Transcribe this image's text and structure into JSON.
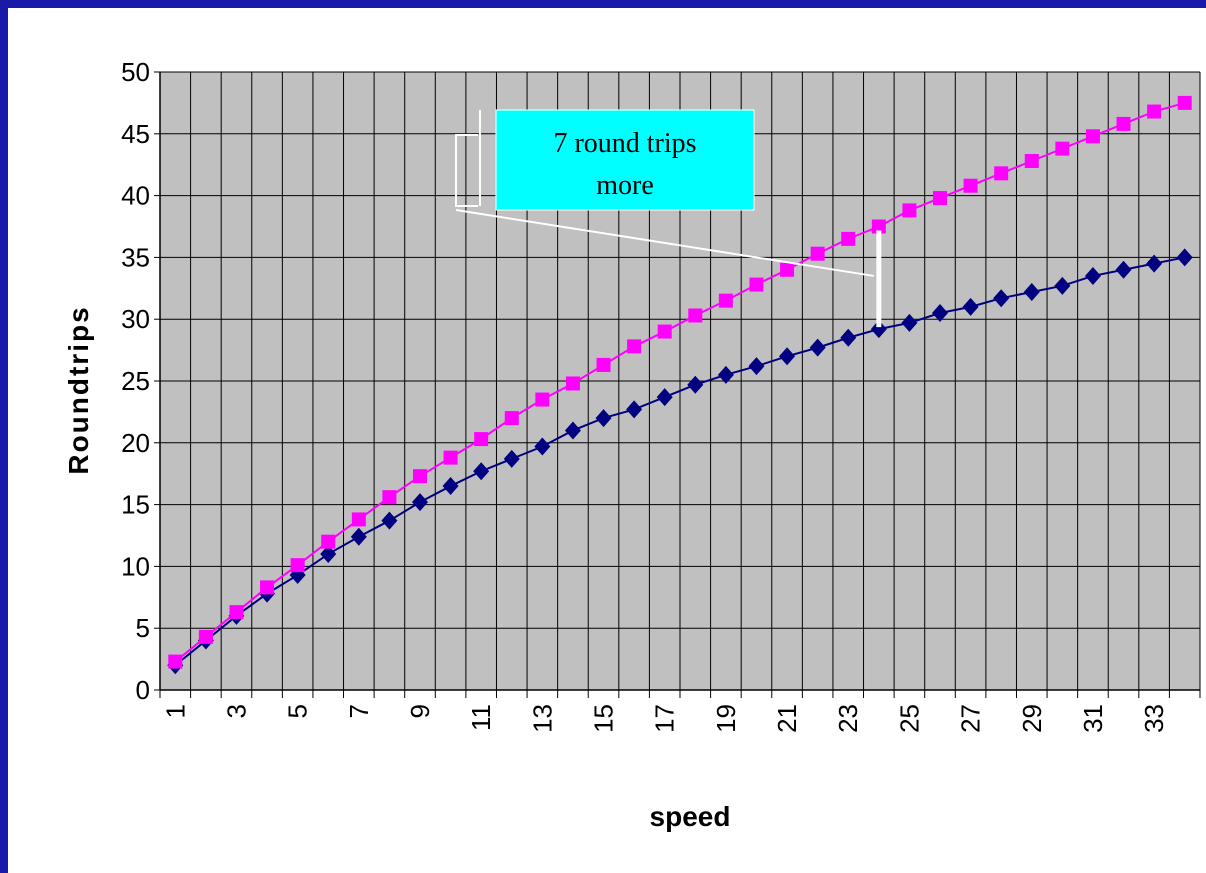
{
  "chart_data": {
    "type": "line",
    "xlabel": "speed",
    "ylabel": "Roundtrips",
    "ylim": [
      0,
      50
    ],
    "yticks": [
      0,
      5,
      10,
      15,
      20,
      25,
      30,
      35,
      40,
      45,
      50
    ],
    "x": [
      1,
      2,
      3,
      4,
      5,
      6,
      7,
      8,
      9,
      10,
      11,
      12,
      13,
      14,
      15,
      16,
      17,
      18,
      19,
      20,
      21,
      22,
      23,
      24,
      25,
      26,
      27,
      28,
      29,
      30,
      31,
      32,
      33,
      34
    ],
    "xtick_labels": [
      "1",
      "3",
      "5",
      "7",
      "9",
      "11",
      "13",
      "15",
      "17",
      "19",
      "21",
      "23",
      "25",
      "27",
      "29",
      "31",
      "33"
    ],
    "grid": true,
    "legend": "none",
    "plot_background": "#c0c0c0",
    "series": [
      {
        "color": "#000080",
        "marker": "diamond",
        "values": [
          2.0,
          4.0,
          6.0,
          7.8,
          9.3,
          11.0,
          12.4,
          13.7,
          15.2,
          16.5,
          17.7,
          18.7,
          19.7,
          21.0,
          22.0,
          22.7,
          23.7,
          24.7,
          25.5,
          26.2,
          27.0,
          27.7,
          28.5,
          29.2,
          29.7,
          30.5,
          31.0,
          31.7,
          32.2,
          32.7,
          33.5,
          34.0,
          34.5,
          35.0
        ]
      },
      {
        "color": "#ff00ff",
        "marker": "square",
        "values": [
          2.3,
          4.3,
          6.3,
          8.3,
          10.1,
          12.0,
          13.8,
          15.6,
          17.3,
          18.8,
          20.3,
          22.0,
          23.5,
          24.8,
          26.3,
          27.8,
          29.0,
          30.3,
          31.5,
          32.8,
          34.0,
          35.3,
          36.5,
          37.5,
          38.8,
          39.8,
          40.8,
          41.8,
          42.8,
          43.8,
          44.8,
          45.8,
          46.8,
          47.5
        ]
      }
    ],
    "annotation": {
      "text_line1": "7 round trips",
      "text_line2": "more",
      "box_color": "#00ffff",
      "at_x": 24
    }
  }
}
